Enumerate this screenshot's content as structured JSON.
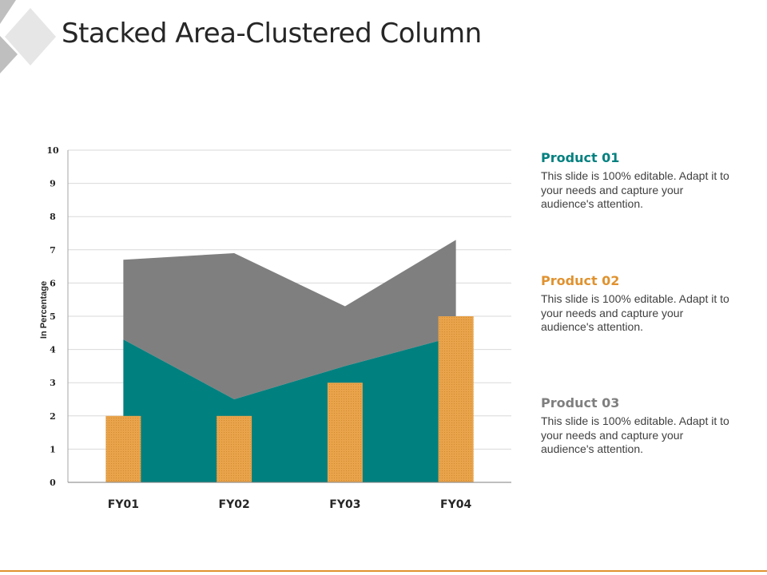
{
  "slide": {
    "title": "Stacked Area-Clustered Column"
  },
  "colors": {
    "product_01": "#00807f",
    "product_02": "#e8a34b",
    "product_03": "#7f7f7f",
    "accent_line": "#e0922f"
  },
  "legend": [
    {
      "title": "Product 01",
      "description": "This slide is 100% editable. Adapt it to your needs and capture your audience's attention."
    },
    {
      "title": "Product 02",
      "description": "This slide is 100% editable. Adapt it to your needs and capture your audience's attention."
    },
    {
      "title": "Product 03",
      "description": "This slide is 100% editable. Adapt it to your needs and capture your audience's attention."
    }
  ],
  "chart_data": {
    "type": "bar",
    "categories": [
      "FY01",
      "FY02",
      "FY03",
      "FY04"
    ],
    "ylabel": "In Percentage",
    "ylim": [
      0,
      10
    ],
    "yticks": [
      0,
      1,
      2,
      3,
      4,
      5,
      6,
      7,
      8,
      9,
      10
    ],
    "grid": true,
    "legend_position": "right",
    "series": [
      {
        "name": "Product 01",
        "type": "stacked-area",
        "values": [
          4.3,
          2.5,
          3.5,
          4.4
        ]
      },
      {
        "name": "Product 02",
        "type": "clustered-column",
        "values": [
          2,
          2,
          3,
          5
        ]
      },
      {
        "name": "Product 03",
        "type": "stacked-area",
        "values": [
          2.4,
          4.4,
          1.8,
          2.9
        ]
      }
    ]
  }
}
